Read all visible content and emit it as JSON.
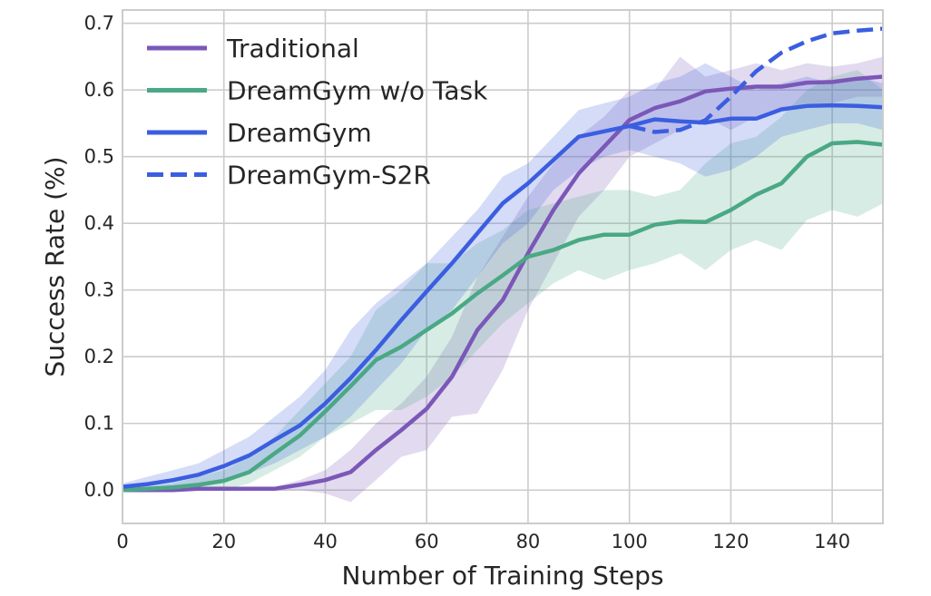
{
  "chart_data": {
    "type": "line",
    "title": "",
    "xlabel": "Number of Training Steps",
    "ylabel": "Success Rate (%)",
    "xlim": [
      0,
      150
    ],
    "ylim": [
      -0.05,
      0.72
    ],
    "xticks": [
      0,
      20,
      40,
      60,
      80,
      100,
      120,
      140
    ],
    "xtick_labels": [
      "0",
      "20",
      "40",
      "60",
      "80",
      "100",
      "120",
      "140"
    ],
    "yticks": [
      0.0,
      0.1,
      0.2,
      0.3,
      0.4,
      0.5,
      0.6,
      0.7
    ],
    "ytick_labels": [
      "0.0",
      "0.1",
      "0.2",
      "0.3",
      "0.4",
      "0.5",
      "0.6",
      "0.7"
    ],
    "grid": true,
    "legend_position": "top-left",
    "series": [
      {
        "name": "Traditional",
        "color": "#7b57b8",
        "style": "solid",
        "x": [
          0,
          5,
          10,
          15,
          20,
          25,
          30,
          35,
          40,
          45,
          50,
          55,
          60,
          65,
          70,
          75,
          80,
          85,
          90,
          95,
          100,
          105,
          110,
          115,
          120,
          125,
          130,
          135,
          140,
          145,
          150
        ],
        "values": [
          0.0,
          0.0,
          0.0,
          0.002,
          0.002,
          0.002,
          0.002,
          0.008,
          0.015,
          0.027,
          0.06,
          0.09,
          0.122,
          0.17,
          0.24,
          0.285,
          0.355,
          0.42,
          0.475,
          0.515,
          0.555,
          0.573,
          0.583,
          0.598,
          0.602,
          0.605,
          0.605,
          0.611,
          0.612,
          0.617,
          0.62
        ],
        "lower": [
          0.0,
          0.0,
          0.0,
          0.0,
          0.0,
          0.0,
          0.0,
          0.0,
          -0.005,
          -0.018,
          0.015,
          0.05,
          0.06,
          0.11,
          0.115,
          0.18,
          0.27,
          0.34,
          0.41,
          0.45,
          0.5,
          0.52,
          0.54,
          0.56,
          0.54,
          0.56,
          0.57,
          0.58,
          0.58,
          0.59,
          0.59
        ],
        "upper": [
          0.0,
          0.0,
          0.0,
          0.005,
          0.005,
          0.005,
          0.005,
          0.015,
          0.03,
          0.06,
          0.1,
          0.13,
          0.17,
          0.23,
          0.32,
          0.38,
          0.44,
          0.49,
          0.53,
          0.56,
          0.6,
          0.6,
          0.65,
          0.62,
          0.63,
          0.64,
          0.63,
          0.64,
          0.635,
          0.64,
          0.65
        ]
      },
      {
        "name": "DreamGym w/o Task",
        "color": "#4aa885",
        "style": "solid",
        "x": [
          0,
          5,
          10,
          15,
          20,
          25,
          30,
          35,
          40,
          45,
          50,
          55,
          60,
          65,
          70,
          75,
          80,
          85,
          90,
          95,
          100,
          105,
          110,
          115,
          120,
          125,
          130,
          135,
          140,
          145,
          150
        ],
        "values": [
          0.0,
          0.002,
          0.004,
          0.008,
          0.014,
          0.027,
          0.055,
          0.082,
          0.118,
          0.156,
          0.195,
          0.215,
          0.24,
          0.265,
          0.295,
          0.322,
          0.35,
          0.36,
          0.375,
          0.383,
          0.383,
          0.398,
          0.403,
          0.402,
          0.42,
          0.443,
          0.46,
          0.5,
          0.52,
          0.522,
          0.518
        ],
        "lower": [
          0.0,
          0.0,
          0.0,
          0.0,
          0.0,
          0.01,
          0.03,
          0.05,
          0.08,
          0.1,
          0.12,
          0.12,
          0.14,
          0.17,
          0.21,
          0.25,
          0.28,
          0.31,
          0.33,
          0.315,
          0.33,
          0.34,
          0.355,
          0.33,
          0.36,
          0.375,
          0.36,
          0.405,
          0.42,
          0.41,
          0.43
        ],
        "upper": [
          0.0,
          0.005,
          0.01,
          0.02,
          0.03,
          0.05,
          0.08,
          0.12,
          0.16,
          0.2,
          0.27,
          0.3,
          0.34,
          0.34,
          0.37,
          0.39,
          0.42,
          0.43,
          0.44,
          0.45,
          0.45,
          0.44,
          0.45,
          0.49,
          0.52,
          0.53,
          0.56,
          0.6,
          0.62,
          0.63,
          0.6
        ]
      },
      {
        "name": "DreamGym",
        "color": "#3b5ee0",
        "style": "solid",
        "x": [
          0,
          5,
          10,
          15,
          20,
          25,
          30,
          35,
          40,
          45,
          50,
          55,
          60,
          65,
          70,
          75,
          80,
          85,
          90,
          95,
          100,
          105,
          110,
          115,
          120,
          125,
          130,
          135,
          140,
          145,
          150
        ],
        "values": [
          0.005,
          0.009,
          0.015,
          0.023,
          0.036,
          0.052,
          0.075,
          0.097,
          0.13,
          0.168,
          0.21,
          0.255,
          0.298,
          0.34,
          0.385,
          0.43,
          0.46,
          0.495,
          0.53,
          0.538,
          0.546,
          0.556,
          0.553,
          0.551,
          0.557,
          0.557,
          0.571,
          0.576,
          0.577,
          0.576,
          0.574
        ],
        "lower": [
          0.0,
          0.0,
          0.005,
          0.01,
          0.015,
          0.025,
          0.04,
          0.06,
          0.08,
          0.11,
          0.15,
          0.19,
          0.24,
          0.27,
          0.32,
          0.37,
          0.4,
          0.45,
          0.48,
          0.5,
          0.51,
          0.5,
          0.49,
          0.47,
          0.48,
          0.5,
          0.53,
          0.54,
          0.55,
          0.55,
          0.54
        ],
        "upper": [
          0.01,
          0.02,
          0.03,
          0.04,
          0.06,
          0.08,
          0.11,
          0.14,
          0.18,
          0.24,
          0.28,
          0.31,
          0.34,
          0.38,
          0.42,
          0.47,
          0.49,
          0.53,
          0.57,
          0.58,
          0.59,
          0.61,
          0.62,
          0.64,
          0.62,
          0.6,
          0.61,
          0.62,
          0.61,
          0.62,
          0.61
        ]
      },
      {
        "name": "DreamGym-S2R",
        "color": "#3b5ee0",
        "style": "dashed",
        "x": [
          100,
          105,
          110,
          115,
          120,
          125,
          130,
          135,
          140,
          145,
          150
        ],
        "values": [
          0.546,
          0.537,
          0.54,
          0.555,
          0.59,
          0.628,
          0.656,
          0.673,
          0.685,
          0.689,
          0.692
        ]
      }
    ]
  }
}
